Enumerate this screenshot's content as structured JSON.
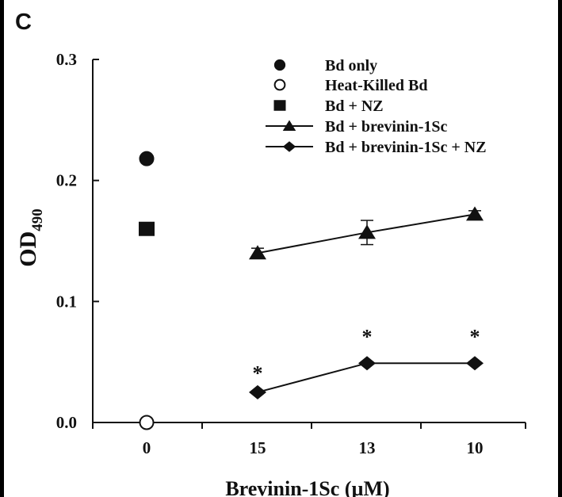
{
  "panel_label": "C",
  "chart_data": {
    "type": "scatter",
    "title": "",
    "xlabel": "Brevinin-1Sc (µM)",
    "ylabel_main": "OD",
    "ylabel_sub": "490",
    "ylim": [
      0.0,
      0.3
    ],
    "y_ticks": [
      "0.0",
      "0.1",
      "0.2",
      "0.3"
    ],
    "categories": [
      "0",
      "15",
      "13",
      "10"
    ],
    "grid": false,
    "legend_position": "top-right",
    "series": [
      {
        "name": "Bd only",
        "marker": "filled-circle",
        "line": false,
        "points": [
          {
            "x": "0",
            "y": 0.218
          }
        ]
      },
      {
        "name": "Heat-Killed Bd",
        "marker": "open-circle",
        "line": false,
        "points": [
          {
            "x": "0",
            "y": 0.0
          }
        ]
      },
      {
        "name": "Bd + NZ",
        "marker": "filled-square",
        "line": false,
        "points": [
          {
            "x": "0",
            "y": 0.16
          }
        ]
      },
      {
        "name": "Bd + brevinin-1Sc",
        "marker": "triangle",
        "line": true,
        "points": [
          {
            "x": "15",
            "y": 0.14,
            "err": 0.004
          },
          {
            "x": "13",
            "y": 0.157,
            "err": 0.01
          },
          {
            "x": "10",
            "y": 0.172,
            "err": 0.003
          }
        ]
      },
      {
        "name": "Bd + brevinin-1Sc + NZ",
        "marker": "diamond",
        "line": true,
        "points": [
          {
            "x": "15",
            "y": 0.025
          },
          {
            "x": "13",
            "y": 0.049
          },
          {
            "x": "10",
            "y": 0.049
          }
        ]
      }
    ],
    "annotations": [
      {
        "text": "*",
        "x": "15",
        "y": 0.043
      },
      {
        "text": "*",
        "x": "13",
        "y": 0.073
      },
      {
        "text": "*",
        "x": "10",
        "y": 0.073
      }
    ]
  }
}
